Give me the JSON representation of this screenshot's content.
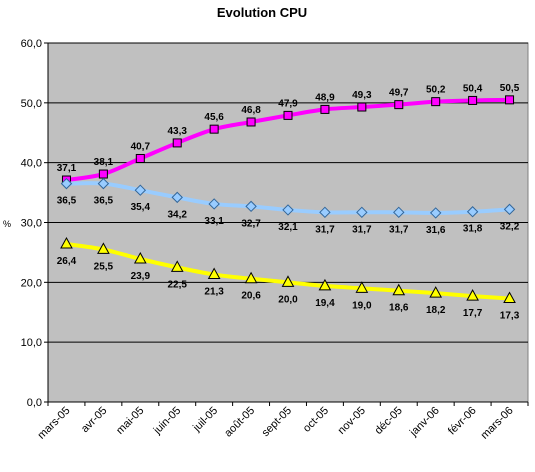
{
  "chart_data": {
    "type": "line",
    "title": "Evolution CPU",
    "xlabel": "",
    "ylabel": "%",
    "ylim": [
      0,
      60
    ],
    "yticks": [
      "0,0",
      "10,0",
      "20,0",
      "30,0",
      "40,0",
      "50,0",
      "60,0"
    ],
    "grid": "horizontal",
    "legend": "none",
    "plot_background": "#c0c0c0",
    "categories": [
      "mars-05",
      "avr-05",
      "mai-05",
      "juin-05",
      "juil-05",
      "août-05",
      "sept-05",
      "oct-05",
      "nov-05",
      "déc-05",
      "janv-06",
      "févr-06",
      "mars-06"
    ],
    "series": [
      {
        "color": "#ff00ff",
        "marker": "square",
        "label_position": "above",
        "values": [
          37.1,
          38.1,
          40.7,
          43.3,
          45.6,
          46.8,
          47.9,
          48.9,
          49.3,
          49.7,
          50.2,
          50.4,
          50.5
        ],
        "labels": [
          "37,1",
          "38,1",
          "40,7",
          "43,3",
          "45,6",
          "46,8",
          "47,9",
          "48,9",
          "49,3",
          "49,7",
          "50,2",
          "50,4",
          "50,5"
        ]
      },
      {
        "color": "#99ccff",
        "marker": "diamond",
        "label_position": "below",
        "values": [
          36.5,
          36.5,
          35.4,
          34.2,
          33.1,
          32.7,
          32.1,
          31.7,
          31.7,
          31.7,
          31.6,
          31.8,
          32.2
        ],
        "labels": [
          "36,5",
          "36,5",
          "35,4",
          "34,2",
          "33,1",
          "32,7",
          "32,1",
          "31,7",
          "31,7",
          "31,7",
          "31,6",
          "31,8",
          "32,2"
        ]
      },
      {
        "color": "#ffff00",
        "marker": "triangle",
        "label_position": "below",
        "values": [
          26.4,
          25.5,
          23.9,
          22.5,
          21.3,
          20.6,
          20.0,
          19.4,
          19.0,
          18.6,
          18.2,
          17.7,
          17.3
        ],
        "labels": [
          "26,4",
          "25,5",
          "23,9",
          "22,5",
          "21,3",
          "20,6",
          "20,0",
          "19,4",
          "19,0",
          "18,6",
          "18,2",
          "17,7",
          "17,3"
        ]
      }
    ]
  }
}
